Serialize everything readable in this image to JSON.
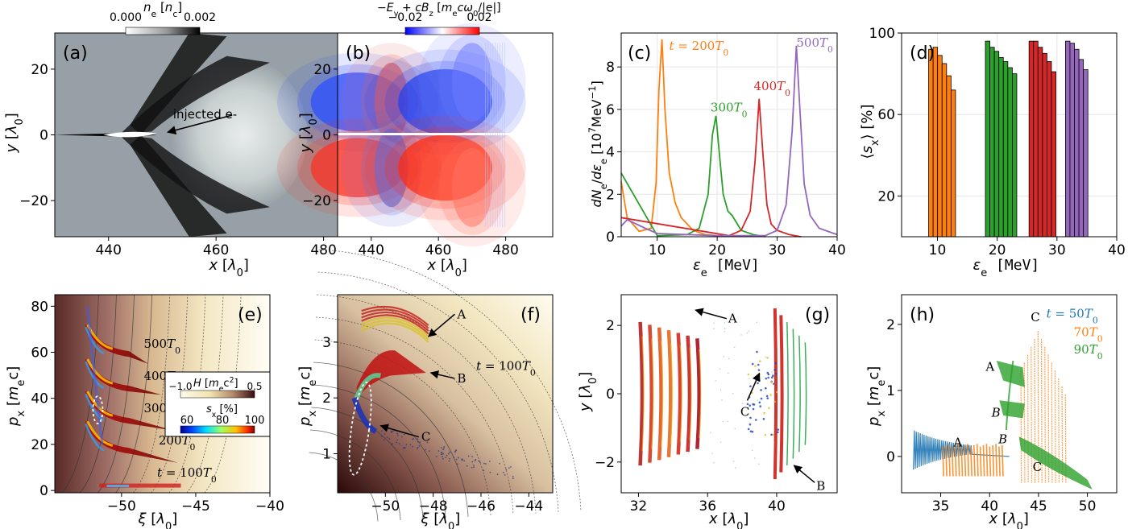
{
  "chart_data": [
    {
      "panel": "(a)",
      "type": "heatmap",
      "colorbar": {
        "label": "n_e [n_c]",
        "ticks": [
          "0.000",
          "0.002"
        ],
        "colors": [
          "#ffffff",
          "#000000"
        ]
      },
      "xlabel": "x [λ0]",
      "ylabel": "y [λ0]",
      "xticks": [
        "440",
        "460",
        "480"
      ],
      "yticks": [
        "20",
        "0",
        "−20"
      ],
      "xlim": [
        430,
        494
      ],
      "ylim": [
        -31,
        31
      ],
      "annotation": "injected e-"
    },
    {
      "panel": "(b)",
      "type": "heatmap",
      "colorbar": {
        "label": "−E_y + cB_z [m_ecω0/|e|]",
        "ticks": [
          "−0.02",
          "0.02"
        ],
        "colors": [
          "#0000ff",
          "#ffffff",
          "#ff0000"
        ]
      },
      "xlabel": "x [λ0]",
      "ylabel": "y [λ0]",
      "xticks": [
        "440",
        "460",
        "480"
      ],
      "yticks": [
        "20",
        "0",
        "−20"
      ],
      "xlim": [
        430,
        494
      ],
      "ylim": [
        -31,
        31
      ]
    },
    {
      "panel": "(c)",
      "type": "line",
      "xlabel": "ε_e [MeV]",
      "ylabel": "dN_e/dε_e [10^7 MeV^-1]",
      "xlim": [
        4,
        40
      ],
      "ylim": [
        0,
        9.6
      ],
      "xticks": [
        "10",
        "20",
        "30",
        "40"
      ],
      "yticks": [
        "0",
        "2",
        "4",
        "6",
        "8"
      ],
      "series": [
        {
          "name": "t = 200T0",
          "color": "#ff7f0e",
          "x": [
            4,
            5,
            7,
            9,
            9.8,
            10.3,
            10.8,
            11.3,
            12,
            13,
            14,
            16,
            18,
            20
          ],
          "y": [
            2.6,
            0.9,
            0.25,
            0.4,
            2.5,
            7.0,
            9.3,
            6.0,
            3.0,
            1.6,
            0.9,
            0.3,
            0.1,
            0.05
          ]
        },
        {
          "name": "300T0",
          "color": "#2ca02c",
          "x": [
            4,
            10,
            15,
            17,
            18.5,
            19.2,
            19.8,
            20.4,
            21,
            21.8,
            22.5,
            24,
            26,
            28
          ],
          "y": [
            3.0,
            0.05,
            0.1,
            0.4,
            2.0,
            4.8,
            5.7,
            3.8,
            2.0,
            1.2,
            1.0,
            0.3,
            0.1,
            0.0
          ]
        },
        {
          "name": "400T0",
          "color": "#d62728",
          "x": [
            4,
            22,
            24,
            25.5,
            26.3,
            27,
            27.6,
            28.3,
            29,
            30,
            32,
            34
          ],
          "y": [
            0.9,
            0.05,
            0.3,
            1.2,
            3.5,
            6.5,
            4.0,
            1.5,
            0.6,
            0.3,
            0.1,
            0.0
          ]
        },
        {
          "name": "500T0",
          "color": "#9467bd",
          "x": [
            4,
            5,
            8,
            10,
            20,
            28,
            30,
            31.5,
            32.5,
            33.2,
            33.8,
            34.5,
            35.5,
            37,
            40
          ],
          "y": [
            0.5,
            0.8,
            0.4,
            0.15,
            0.05,
            0.05,
            0.3,
            1.5,
            5.0,
            9.0,
            6.0,
            2.5,
            1.0,
            0.4,
            0.1
          ]
        }
      ]
    },
    {
      "panel": "(d)",
      "type": "bar",
      "xlabel": "ε_e [MeV]",
      "ylabel": "⟨s_x⟩ [%]",
      "xlim": [
        4,
        40
      ],
      "ylim": [
        0,
        100
      ],
      "xticks": [
        "10",
        "20",
        "30",
        "40"
      ],
      "yticks": [
        "20",
        "60",
        "100"
      ],
      "bar_width": 0.75,
      "series": [
        {
          "name": "200T0",
          "color": "#ff7f0e",
          "x": [
            8.9,
            9.65,
            10.4,
            11.15,
            11.9,
            12.65
          ],
          "values": [
            92,
            93,
            89,
            85,
            79,
            72
          ]
        },
        {
          "name": "300T0",
          "color": "#2ca02c",
          "x": [
            18.4,
            19.15,
            19.9,
            20.65,
            21.4,
            22.15,
            22.9
          ],
          "values": [
            96,
            93,
            91,
            88,
            86,
            83,
            80
          ]
        },
        {
          "name": "400T0",
          "color": "#d62728",
          "x": [
            25.7,
            26.45,
            27.2,
            27.95,
            28.7,
            29.45
          ],
          "values": [
            96,
            96,
            93,
            90,
            86,
            81
          ]
        },
        {
          "name": "500T0",
          "color": "#9467bd",
          "x": [
            31.8,
            32.55,
            33.3,
            34.05,
            34.8
          ],
          "values": [
            96,
            95,
            92,
            87,
            82
          ]
        }
      ]
    },
    {
      "panel": "(e)",
      "type": "scatter",
      "xlabel": "ξ [λ0]",
      "ylabel": "p_x [m_ec]",
      "xlim": [
        -54.5,
        -40
      ],
      "ylim": [
        -1,
        85
      ],
      "xticks": [
        "−50",
        "−45",
        "−40"
      ],
      "yticks": [
        "0",
        "20",
        "40",
        "60",
        "80"
      ],
      "labels": [
        "500T0",
        "400T0",
        "300T0",
        "200T0",
        "t = 100T0"
      ],
      "colorbar_H": {
        "label": "H [m_ec^2]",
        "ticks": [
          "−1.0",
          "0.5"
        ]
      },
      "colorbar_s": {
        "label": "s_x [%]",
        "ticks": [
          "60",
          "80",
          "100"
        ]
      }
    },
    {
      "panel": "(f)",
      "type": "scatter",
      "xlabel": "ξ [λ0]",
      "ylabel": "p_x [m_ec]",
      "xlim": [
        -52,
        -43
      ],
      "ylim": [
        0.3,
        3.85
      ],
      "xticks": [
        "−50",
        "−48",
        "−46",
        "−44"
      ],
      "yticks": [
        "1",
        "2",
        "3"
      ],
      "labels": [
        "A",
        "B",
        "C",
        "t = 100T0"
      ]
    },
    {
      "panel": "(g)",
      "type": "scatter",
      "xlabel": "x [λ0]",
      "ylabel": "y [λ0]",
      "xlim": [
        31,
        43.5
      ],
      "ylim": [
        -2.9,
        2.9
      ],
      "xticks": [
        "32",
        "36",
        "40"
      ],
      "yticks": [
        "2",
        "0",
        "−2"
      ],
      "labels": [
        "A",
        "B",
        "C"
      ]
    },
    {
      "panel": "(h)",
      "type": "scatter",
      "xlabel": "x [λ0]",
      "ylabel": "p_x [m_ec]",
      "xlim": [
        31,
        53
      ],
      "ylim": [
        -0.55,
        2.45
      ],
      "xticks": [
        "35",
        "40",
        "45",
        "50"
      ],
      "yticks": [
        "0",
        "1",
        "2"
      ],
      "labels": [
        "A",
        "B",
        "C",
        "A",
        "B",
        "C"
      ],
      "series": [
        {
          "name": "t = 50T0",
          "color": "#1f77b4"
        },
        {
          "name": "70T0",
          "color": "#ff7f0e"
        },
        {
          "name": "90T0",
          "color": "#2ca02c"
        }
      ]
    }
  ]
}
